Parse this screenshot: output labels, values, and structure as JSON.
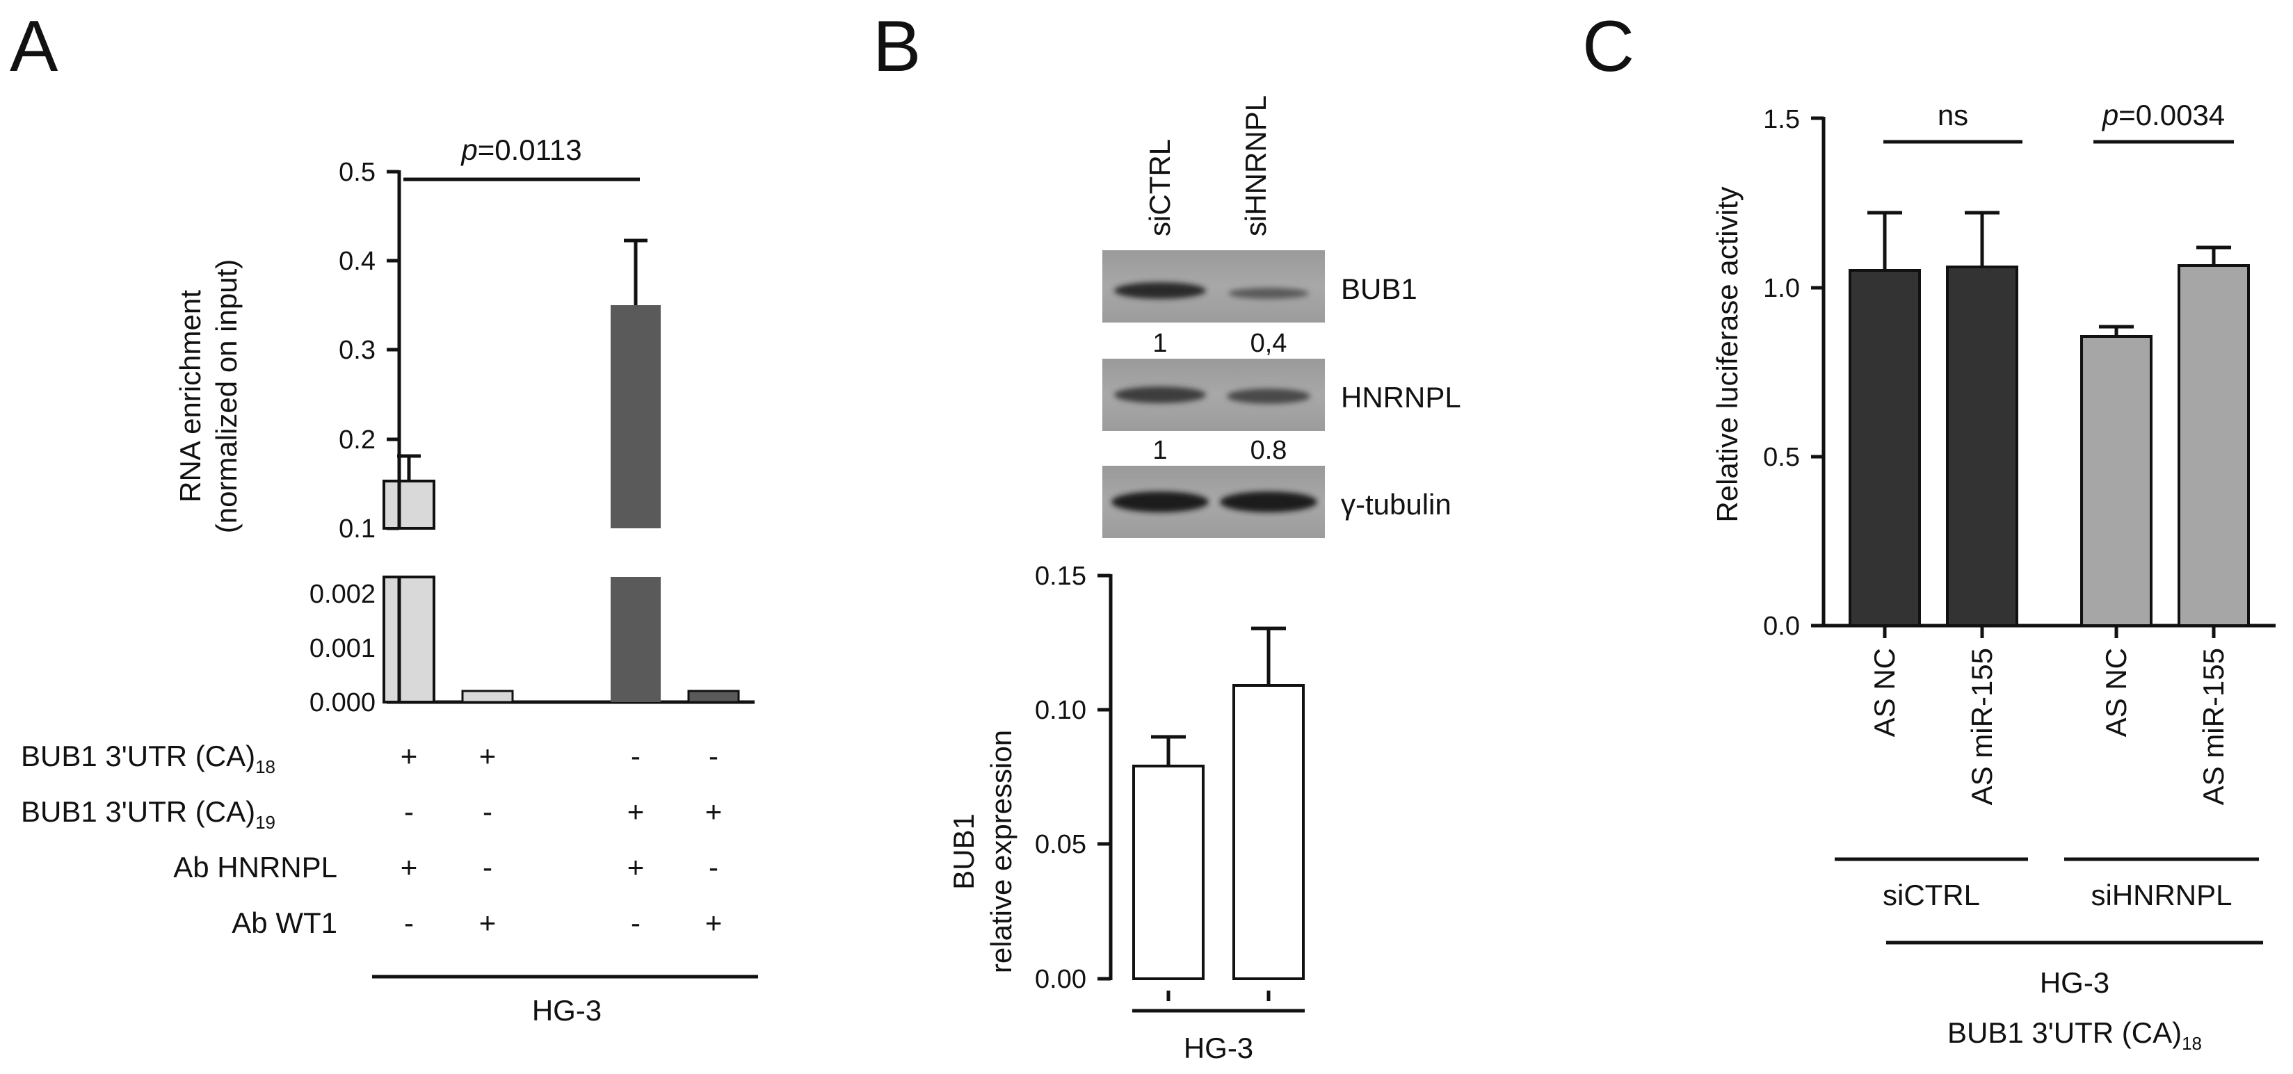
{
  "panels": {
    "A": {
      "letter": "A",
      "chart_data": {
        "type": "bar",
        "ylabel": "RNA enrichment",
        "ylabel2": "(normalized on input)",
        "yticks_upper": [
          "0.1",
          "0.2",
          "0.3",
          "0.4",
          "0.5"
        ],
        "yticks_lower": [
          "0.000",
          "0.001",
          "0.002"
        ],
        "ylim_upper": [
          0.1,
          0.5
        ],
        "ylim_lower": [
          0,
          0.0025
        ],
        "broken_axis": true,
        "series": [
          {
            "values": [
              0.153,
              0.0002,
              0.351,
              0.0002
            ],
            "errors": [
              0.028,
              0.0,
              0.072,
              0.0
            ]
          }
        ],
        "bar_colors": [
          "#d9d9d9",
          "#d9d9d9",
          "#5a5a5a",
          "#5a5a5a"
        ],
        "conditions": [
          {
            "name": "BUB1 3'UTR (CA)",
            "sub": "18",
            "signs": [
              "+",
              "+",
              "-",
              "-"
            ]
          },
          {
            "name": "BUB1 3'UTR (CA)",
            "sub": "19",
            "signs": [
              "-",
              "-",
              "+",
              "+"
            ]
          },
          {
            "name": "Ab HNRNPL",
            "sub": "",
            "signs": [
              "+",
              "-",
              "+",
              "-"
            ]
          },
          {
            "name": "Ab WT1",
            "sub": "",
            "signs": [
              "-",
              "+",
              "-",
              "+"
            ]
          }
        ],
        "significance": {
          "p_italic": "p",
          "p_value": "=0.0113"
        },
        "group_label": "HG-3"
      }
    },
    "B": {
      "letter": "B",
      "blot": {
        "lanes": [
          "siCTRL",
          "siHNRNPL"
        ],
        "rows": [
          {
            "label": "BUB1",
            "quant": [
              "1",
              "0,4"
            ]
          },
          {
            "label": "HNRNPL",
            "quant": [
              "1",
              "0.8"
            ]
          },
          {
            "label": "γ-tubulin",
            "quant": []
          }
        ]
      },
      "chart_data": {
        "type": "bar",
        "ylabel": "BUB1",
        "ylabel2": "relative expression",
        "yticks": [
          "0.00",
          "0.05",
          "0.10",
          "0.15"
        ],
        "ylim": [
          0,
          0.15
        ],
        "series": [
          {
            "values": [
              0.079,
              0.109
            ],
            "errors": [
              0.011,
              0.021
            ]
          }
        ],
        "bar_colors": [
          "#ffffff",
          "#ffffff"
        ],
        "group_label": "HG-3"
      }
    },
    "C": {
      "letter": "C",
      "chart_data": {
        "type": "bar",
        "ylabel": "Relative luciferase activity",
        "yticks": [
          "0.0",
          "0.5",
          "1.0",
          "1.5"
        ],
        "ylim": [
          0,
          1.5
        ],
        "categories": [
          "AS NC",
          "AS miR-155",
          "AS NC",
          "AS miR-155"
        ],
        "series": [
          {
            "values": [
              1.05,
              1.06,
              0.855,
              1.065
            ],
            "errors": [
              0.17,
              0.16,
              0.03,
              0.055
            ]
          }
        ],
        "bar_colors": [
          "#333333",
          "#333333",
          "#a6a6a6",
          "#a6a6a6"
        ],
        "groups": [
          "siCTRL",
          "siHNRNPL"
        ],
        "significance": [
          {
            "text": "ns"
          },
          {
            "p_italic": "p",
            "p_value": "=0.0034"
          }
        ],
        "footer_line1": "HG-3",
        "footer_line2": "BUB1 3'UTR (CA)",
        "footer_sub": "18"
      }
    }
  }
}
